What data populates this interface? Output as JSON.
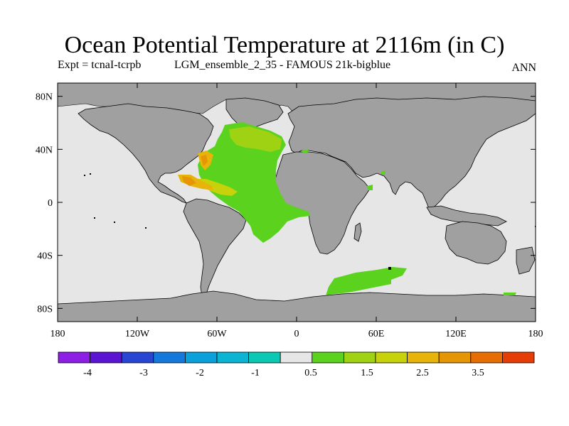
{
  "title": "Ocean Potential Temperature at 2116m (in C)",
  "subtitle_left": "Expt = tcnaI-tcrpb",
  "subtitle_center": "LGM_ensemble_2_35 - FAMOUS 21k-bigblue",
  "season": "ANN",
  "map": {
    "projection": "cylindrical-equidistant",
    "lon_range": [
      -180,
      180
    ],
    "lat_range": [
      -90,
      90
    ],
    "land_color": "#a0a0a0",
    "missing_ocean_color": "#e6e6e6",
    "lat_ticks": [
      "80N",
      "40N",
      "0",
      "40S",
      "80S"
    ],
    "lat_tick_values": [
      80,
      40,
      0,
      -40,
      -80
    ],
    "lon_ticks": [
      "180",
      "120W",
      "60W",
      "0",
      "60E",
      "120E",
      "180"
    ],
    "lon_tick_values": [
      -180,
      -120,
      -60,
      0,
      60,
      120,
      180
    ]
  },
  "colorbar": {
    "colors": [
      "#8c1ee6",
      "#5a14d2",
      "#2846d2",
      "#1478dc",
      "#0aa0dc",
      "#0ab4d2",
      "#0ac8b4",
      "#e6e6e6",
      "#5ad21e",
      "#a0d214",
      "#c8d20a",
      "#e6b40a",
      "#e69605",
      "#e66e05",
      "#e63c05"
    ],
    "labels": [
      "-4",
      "-3",
      "-2",
      "-1",
      "0.5",
      "1.5",
      "2.5",
      "3.5"
    ]
  }
}
